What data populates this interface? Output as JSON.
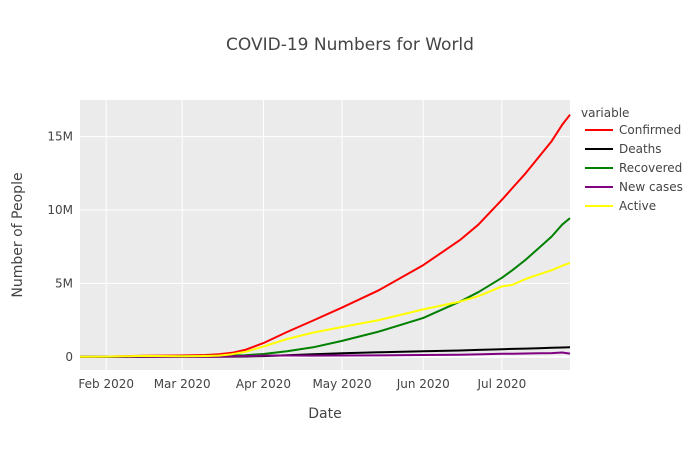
{
  "chart_data": {
    "type": "line",
    "title": "COVID-19 Numbers for World",
    "xlabel": "Date",
    "ylabel": "Number of People",
    "legend_title": "variable",
    "legend_position": "right",
    "grid": true,
    "background": "#ebebeb",
    "xlim": [
      "2020-01-22",
      "2020-07-27"
    ],
    "ylim": [
      -900000,
      17500000
    ],
    "x_ticks": [
      {
        "date": "2020-02-01",
        "label": "Feb 2020"
      },
      {
        "date": "2020-03-01",
        "label": "Mar 2020"
      },
      {
        "date": "2020-04-01",
        "label": "Apr 2020"
      },
      {
        "date": "2020-05-01",
        "label": "May 2020"
      },
      {
        "date": "2020-06-01",
        "label": "Jun 2020"
      },
      {
        "date": "2020-07-01",
        "label": "Jul 2020"
      }
    ],
    "y_ticks": [
      {
        "value": 0,
        "label": "0"
      },
      {
        "value": 5000000,
        "label": "5M"
      },
      {
        "value": 10000000,
        "label": "10M"
      },
      {
        "value": 15000000,
        "label": "15M"
      }
    ],
    "x": [
      "2020-01-22",
      "2020-02-01",
      "2020-02-15",
      "2020-03-01",
      "2020-03-10",
      "2020-03-15",
      "2020-03-20",
      "2020-03-25",
      "2020-04-01",
      "2020-04-10",
      "2020-04-20",
      "2020-05-01",
      "2020-05-15",
      "2020-06-01",
      "2020-06-15",
      "2020-06-22",
      "2020-07-01",
      "2020-07-05",
      "2020-07-10",
      "2020-07-15",
      "2020-07-20",
      "2020-07-24",
      "2020-07-27"
    ],
    "series": [
      {
        "name": "Confirmed",
        "color": "#ff0000",
        "values": [
          600,
          12000,
          69000,
          88000,
          119000,
          167000,
          275000,
          467000,
          935000,
          1690000,
          2470000,
          3350000,
          4530000,
          6250000,
          7950000,
          9000000,
          10700000,
          11500000,
          12500000,
          13600000,
          14700000,
          15800000,
          16500000
        ]
      },
      {
        "name": "Deaths",
        "color": "#000000",
        "values": [
          17,
          260,
          1670,
          3000,
          4260,
          6440,
          11400,
          21200,
          47200,
          101000,
          170000,
          236000,
          304000,
          374000,
          431000,
          470000,
          518000,
          540000,
          560000,
          581000,
          610000,
          635000,
          650000
        ]
      },
      {
        "name": "Recovered",
        "color": "#008000",
        "values": [
          28,
          280,
          9400,
          42700,
          60000,
          76000,
          87000,
          111000,
          193000,
          376000,
          650000,
          1080000,
          1720000,
          2650000,
          3760000,
          4400000,
          5380000,
          5900000,
          6600000,
          7400000,
          8200000,
          9000000,
          9450000
        ]
      },
      {
        "name": "New cases",
        "color": "#800080",
        "values": [
          0,
          2100,
          2000,
          1500,
          4300,
          16000,
          31000,
          49000,
          80000,
          88000,
          79000,
          90000,
          95000,
          120000,
          145000,
          165000,
          205000,
          210000,
          225000,
          240000,
          250000,
          290000,
          220000
        ]
      },
      {
        "name": "Active",
        "color": "#ffff00",
        "values": [
          550,
          11500,
          58000,
          42300,
          55000,
          84600,
          177000,
          335000,
          695000,
          1210000,
          1650000,
          2030000,
          2500000,
          3230000,
          3760000,
          4130000,
          4800000,
          4900000,
          5300000,
          5600000,
          5900000,
          6200000,
          6400000
        ]
      }
    ]
  }
}
